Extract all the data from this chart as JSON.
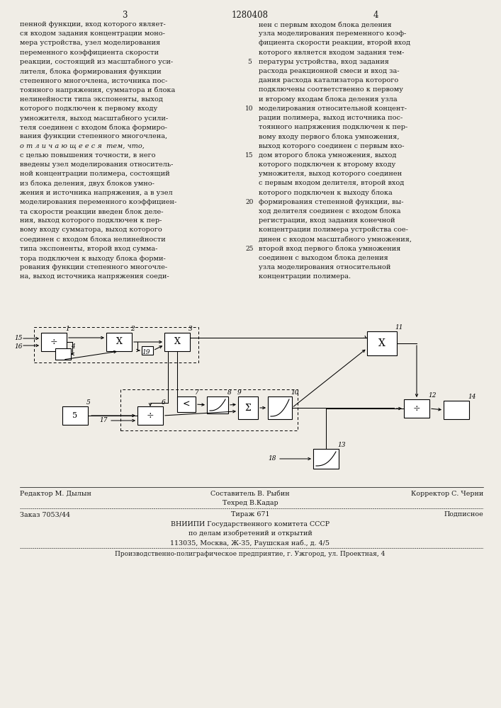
{
  "page_width": 7.07,
  "page_height": 10.0,
  "bg_color": "#f0ede6",
  "text_color": "#1a1a1a",
  "header_patent_num": "1280408",
  "header_page_left": "3",
  "header_page_right": "4",
  "col_left_text": [
    "пенной функции, вход которого являет-",
    "ся входом задания концентрации моно-",
    "мера устройства, узел моделирования",
    "переменного коэффициента скорости",
    "реакции, состоящий из масштабного уси-",
    "лителя, блока формирования функции",
    "степенного многочлена, источника пос-",
    "тоянного напряжения, сумматора и блока",
    "нелинейности типа экспоненты, выход",
    "которого подключен к первому входу",
    "умножителя, выход масштабного усили-",
    "теля соединен с входом блока формиро-",
    "вания функции степенного многочлена,",
    "о т л и ч а ю щ е е с я  тем, что,",
    "с целью повышения точности, в него",
    "введены узел моделирования относитель-",
    "ной концентрации полимера, состоящий",
    "из блока деления, двух блоков умно-",
    "жения и источника напряжения, а в узел",
    "моделирования переменного коэффициен-",
    "та скорости реакции введен блок деле-",
    "ния, выход которого подключен к пер-",
    "вому входу сумматора, выход которого",
    "соединен с входом блока нелинейности",
    "типа экспоненты, второй вход сумма-",
    "тора подключен к выходу блока форми-",
    "рования функции степенного многочле-",
    "на, выход источника напряжения соеди-"
  ],
  "col_right_text": [
    "нен с первым входом блока деления",
    "узла моделирования переменного коэф-",
    "фициента скорости реакции, второй вход",
    "которого является входом задания тем-",
    "пературы устройства, вход задания",
    "расхода реакционной смеси и вход за-",
    "дания расхода катализатора которого",
    "подключены соответственно к первому",
    "и второму входам блока деления узла",
    "моделирования относительной концент-",
    "рации полимера, выход источника пос-",
    "тоянного напряжения подключен к пер-",
    "вому входу первого блока умножения,",
    "выход которого соединен с первым вхо-",
    "дом второго блока умножения, выход",
    "которого подключен к второму входу",
    "умножителя, выход которого соединен",
    "с первым входом делителя, второй вход",
    "которого подключен к выходу блока",
    "формирования степенной функции, вы-",
    "ход делителя соединен с входом блока",
    "регистрации, вход задания конечной",
    "концентрации полимера устройства сое-",
    "динен с входом масштабного умножения,",
    "второй вход первого блока умножения",
    "соединен с выходом блока деления",
    "узла моделирования относительной",
    "концентрации полимера."
  ],
  "line_numbers": {
    "5": 5,
    "10": 10,
    "15": 15,
    "20": 20,
    "25": 25
  },
  "footer": {
    "editor": "Редактор М. Дылын",
    "compiler": "Составитель В. Рыбин",
    "techred": "Техред В.Кадар",
    "corrector": "Корректор С. Черни",
    "order": "Заказ 7053/44",
    "tirazh": "Тираж 671",
    "podpisnoe": "Подписное",
    "vniipи1": "ВНИИПИ Государственного комитета СССР",
    "vniipи2": "по делам изобретений и открытий",
    "vniipи3": "113035, Москва, Ж-35, Раушская наб., д. 4/5",
    "prod": "Производственно-полиграфическое предприятие, г. Ужгород, ул. Проектная, 4"
  }
}
